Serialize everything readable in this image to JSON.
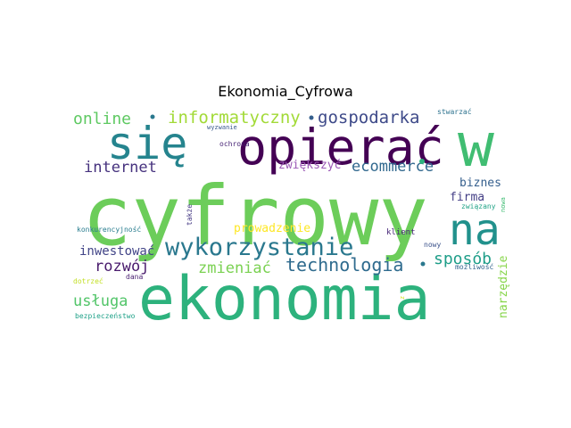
{
  "chart_data": {
    "type": "wordcloud",
    "title": "Ekonomia_Cyfrowa",
    "background": "#ffffff",
    "words": [
      {
        "text": "cyfrowy",
        "color": "#6ccd5a"
      },
      {
        "text": "ekonomia",
        "color": "#2db27d"
      },
      {
        "text": "opierać",
        "color": "#440154"
      },
      {
        "text": "w",
        "color": "#40bd72"
      },
      {
        "text": "się",
        "color": "#25848e"
      },
      {
        "text": "na",
        "color": "#21918c"
      },
      {
        "text": "wykorzystanie",
        "color": "#2a788e"
      },
      {
        "text": "informatyczny",
        "color": "#a2da37"
      },
      {
        "text": "gospodarka",
        "color": "#3e4a89"
      },
      {
        "text": "online",
        "color": "#5ec962"
      },
      {
        "text": "internet",
        "color": "#46327e"
      },
      {
        "text": "ecommerce",
        "color": "#31688e"
      },
      {
        "text": "zwiększyć",
        "color": "#9b59b6"
      },
      {
        "text": "technologia",
        "color": "#2f6b8e"
      },
      {
        "text": "zmieniać",
        "color": "#7ad151"
      },
      {
        "text": "rozwój",
        "color": "#481a6c"
      },
      {
        "text": "sposób",
        "color": "#1f9e89"
      },
      {
        "text": "usługa",
        "color": "#52c569"
      },
      {
        "text": "inwestować",
        "color": "#414487"
      },
      {
        "text": "prowadzenie",
        "color": "#fde725"
      },
      {
        "text": "biznes",
        "color": "#355f8d"
      },
      {
        "text": "firma",
        "color": "#433e85"
      },
      {
        "text": "narzędzie",
        "color": "#86d549"
      },
      {
        "text": "klient",
        "color": "#482878"
      },
      {
        "text": "nowy",
        "color": "#3b528b"
      },
      {
        "text": "ochrona",
        "color": "#482475"
      },
      {
        "text": "wyzwanie",
        "color": "#38588c"
      },
      {
        "text": "stwarzać",
        "color": "#2c728e"
      },
      {
        "text": "związany",
        "color": "#20a386"
      },
      {
        "text": "nowa",
        "color": "#3fbc73"
      },
      {
        "text": "także",
        "color": "#443983"
      },
      {
        "text": "konkurencyjność",
        "color": "#287c8e"
      },
      {
        "text": "dotrzeć",
        "color": "#c2df23"
      },
      {
        "text": "dana",
        "color": "#481f70"
      },
      {
        "text": "możliwość",
        "color": "#33638d"
      },
      {
        "text": "bezpieczeństwo",
        "color": "#1fa188"
      },
      {
        "text": "z",
        "color": "#d2e21b"
      }
    ]
  }
}
